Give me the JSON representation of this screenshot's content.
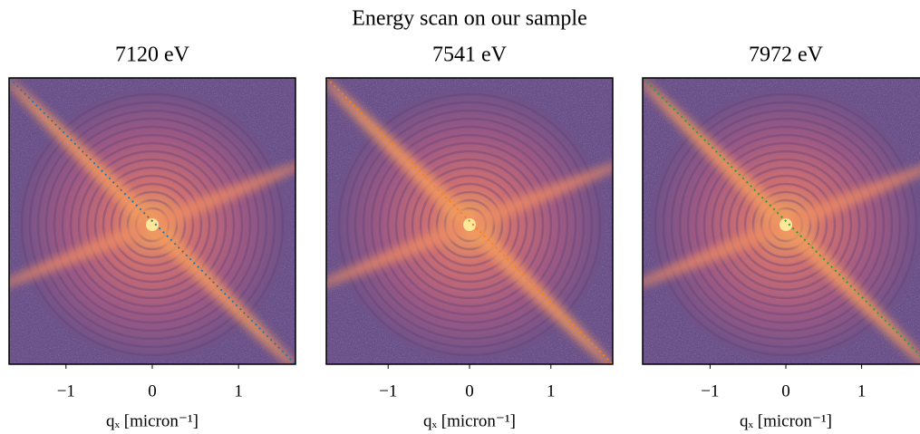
{
  "title": "Energy scan on our sample",
  "chart_data": [
    {
      "type": "image",
      "title": "7120 eV",
      "xlabel": "qₓ [micron⁻¹]",
      "xlim": [
        -1.66,
        1.66
      ],
      "xticks": [
        {
          "value": -1,
          "label": "−1"
        },
        0,
        1
      ],
      "line_color": "#1f77b4"
    },
    {
      "type": "image",
      "title": "7541 eV",
      "xlabel": "qₓ [micron⁻¹]",
      "xlim": [
        -1.76,
        1.76
      ],
      "xticks": [
        {
          "value": -1,
          "label": "−1"
        },
        0,
        1
      ],
      "line_color": "#ff7f0e"
    },
    {
      "type": "image",
      "title": "7972 eV",
      "xlabel": "qₓ [micron⁻¹]",
      "xlim": [
        -1.89,
        1.89
      ],
      "xticks": [
        {
          "value": -1,
          "label": "−1"
        },
        0,
        1
      ],
      "line_color": "#2ca02c"
    }
  ]
}
